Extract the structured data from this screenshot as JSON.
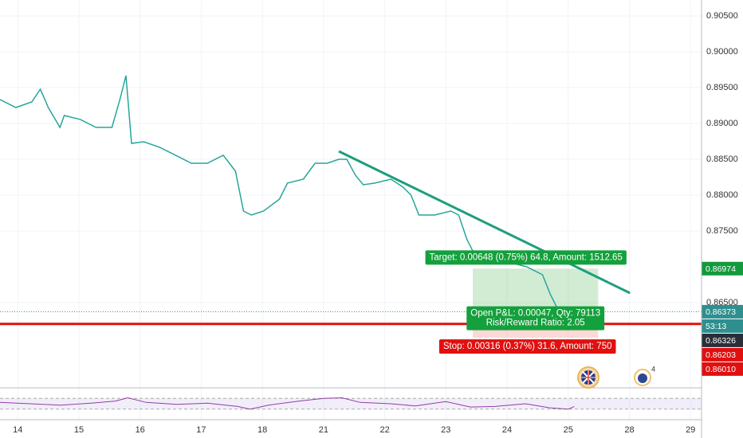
{
  "chart_data": {
    "type": "line",
    "x_unit_note_free": true,
    "xlim": [
      -0.29,
      11.18
    ],
    "xticks": [
      {
        "value": 0,
        "label": "14"
      },
      {
        "value": 1,
        "label": "15"
      },
      {
        "value": 2,
        "label": "16"
      },
      {
        "value": 3,
        "label": "17"
      },
      {
        "value": 4,
        "label": "18"
      },
      {
        "value": 5,
        "label": "21"
      },
      {
        "value": 6,
        "label": "22"
      },
      {
        "value": 7,
        "label": "23"
      },
      {
        "value": 8,
        "label": "24"
      },
      {
        "value": 9,
        "label": "25"
      },
      {
        "value": 10,
        "label": "28"
      },
      {
        "value": 11,
        "label": "29"
      }
    ],
    "ylim": [
      0.85333,
      0.90722
    ],
    "yticks": [
      {
        "value": 0.905,
        "label": "0.90500"
      },
      {
        "value": 0.9,
        "label": "0.90000"
      },
      {
        "value": 0.895,
        "label": "0.89500"
      },
      {
        "value": 0.89,
        "label": "0.89000"
      },
      {
        "value": 0.885,
        "label": "0.88500"
      },
      {
        "value": 0.88,
        "label": "0.88000"
      },
      {
        "value": 0.875,
        "label": "0.87500"
      },
      {
        "value": 0.865,
        "label": "0.86500"
      }
    ],
    "grid": true,
    "series": [
      {
        "color": "#26a69a",
        "x": [
          -0.29,
          -0.03,
          0.23,
          0.37,
          0.5,
          0.69,
          0.76,
          1.02,
          1.28,
          1.54,
          1.67,
          1.77,
          1.86,
          2.06,
          2.32,
          2.58,
          2.84,
          3.1,
          3.36,
          3.56,
          3.69,
          3.82,
          4.02,
          4.28,
          4.41,
          4.67,
          4.86,
          5.06,
          5.25,
          5.38,
          5.52,
          5.65,
          5.84,
          6.1,
          6.3,
          6.43,
          6.56,
          6.82,
          7.08,
          7.21,
          7.34,
          7.47,
          7.73,
          8.06,
          8.32,
          8.58,
          8.71,
          8.84,
          8.97,
          9.1
        ],
        "values": [
          0.89333,
          0.89222,
          0.893,
          0.89478,
          0.89222,
          0.88944,
          0.89111,
          0.89056,
          0.88944,
          0.88944,
          0.89333,
          0.89667,
          0.88722,
          0.88744,
          0.88667,
          0.88556,
          0.88444,
          0.88444,
          0.88556,
          0.88333,
          0.87778,
          0.87722,
          0.87778,
          0.87944,
          0.88167,
          0.88222,
          0.88444,
          0.88444,
          0.885,
          0.885,
          0.88278,
          0.88144,
          0.88167,
          0.88222,
          0.88111,
          0.88,
          0.87722,
          0.87722,
          0.87778,
          0.87722,
          0.87389,
          0.87167,
          0.87111,
          0.87056,
          0.87,
          0.86889,
          0.86611,
          0.86389,
          0.86278,
          0.86333
        ]
      }
    ],
    "trendline": {
      "color": "#1e9e7e",
      "x": [
        5.25,
        10.01
      ],
      "y": [
        0.88611,
        0.86633
      ]
    },
    "position": {
      "x": [
        7.44,
        9.49
      ],
      "entry": 0.86326,
      "target": 0.86974,
      "stop": 0.8601,
      "target_label": "Target: 0.00648 (0.75%) 64.8, Amount: 1512.65",
      "pnl_label": "Open P&L: 0.00047, Qty: 79113",
      "ratio_label": "Risk/Reward Ratio: 2.05",
      "stop_label": "Stop: 0.00316 (0.37%) 31.6, Amount: 750"
    },
    "price_tags": [
      {
        "value": 0.86974,
        "label": "0.86974",
        "color": "#149a3c"
      },
      {
        "value": 0.86373,
        "label": "0.86373",
        "color": "#2f8f8f",
        "line": "dotted"
      },
      {
        "value": 0.86326,
        "label": "0.86326",
        "color": "#2a2e39"
      },
      {
        "value": 0.86203,
        "label": "0.86203",
        "color": "#e01010",
        "line": "solid"
      },
      {
        "value": 0.8601,
        "label": "0.86010",
        "color": "#e01010"
      }
    ],
    "countdown": "53:13",
    "rsi": {
      "color": "#8e3fa6",
      "ylim": [
        0,
        100
      ],
      "band": [
        30,
        70
      ],
      "x": [
        -0.29,
        0.2,
        0.7,
        1.2,
        1.6,
        1.8,
        2.1,
        2.6,
        3.1,
        3.6,
        3.8,
        4.1,
        4.6,
        5.0,
        5.3,
        5.6,
        6.1,
        6.5,
        7.0,
        7.4,
        7.8,
        8.3,
        8.7,
        9.0,
        9.1
      ],
      "values": [
        55,
        50,
        45,
        52,
        60,
        72,
        55,
        48,
        52,
        40,
        30,
        45,
        60,
        70,
        72,
        55,
        50,
        42,
        58,
        38,
        40,
        50,
        35,
        30,
        40
      ]
    },
    "event_count": "4"
  }
}
